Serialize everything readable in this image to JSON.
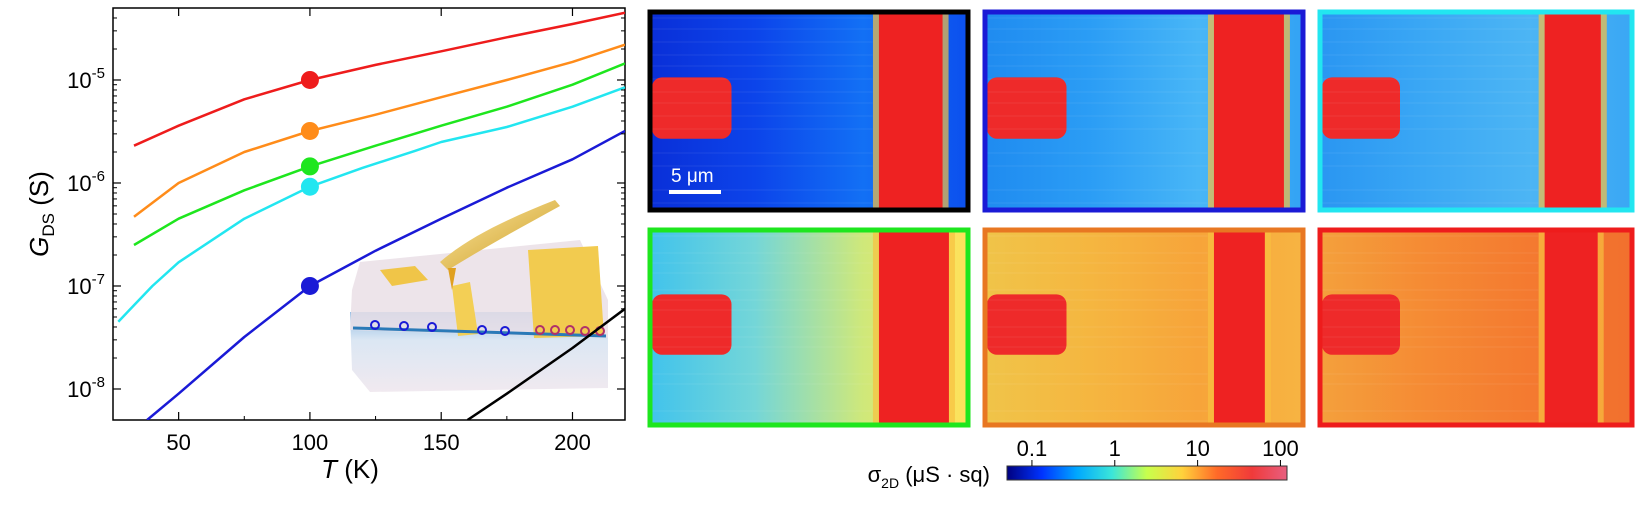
{
  "chart_data": {
    "type": "line",
    "xlabel": "T",
    "xunit": "(K)",
    "ylabel": "G",
    "ylabel_sub": "DS",
    "yunit": "(S)",
    "xlim": [
      25,
      220
    ],
    "ylim": [
      5e-09,
      5e-05
    ],
    "yscale": "log",
    "xticks": [
      "50",
      "100",
      "150",
      "200"
    ],
    "xtick_values": [
      50,
      100,
      150,
      200
    ],
    "yticks": [
      {
        "value": 1e-05,
        "base": "10",
        "exp": "-5"
      },
      {
        "value": 1e-06,
        "base": "10",
        "exp": "-6"
      },
      {
        "value": 1e-07,
        "base": "10",
        "exp": "-7"
      },
      {
        "value": 1e-08,
        "base": "10",
        "exp": "-8"
      }
    ],
    "series": [
      {
        "color": "#ee1c1c",
        "x": [
          33,
          50,
          75,
          100,
          125,
          150,
          175,
          200,
          220
        ],
        "y": [
          2.3e-06,
          3.6e-06,
          6.5e-06,
          1e-05,
          1.4e-05,
          1.9e-05,
          2.6e-05,
          3.5e-05,
          4.5e-05
        ]
      },
      {
        "color": "#ff8c1a",
        "x": [
          33,
          50,
          75,
          100,
          125,
          150,
          175,
          200,
          220
        ],
        "y": [
          4.7e-07,
          1e-06,
          2e-06,
          3.2e-06,
          4.6e-06,
          6.8e-06,
          1e-05,
          1.5e-05,
          2.2e-05
        ]
      },
      {
        "color": "#1ee61e",
        "x": [
          33,
          50,
          75,
          100,
          125,
          150,
          175,
          200,
          220
        ],
        "y": [
          2.5e-07,
          4.5e-07,
          8.5e-07,
          1.45e-06,
          2.3e-06,
          3.6e-06,
          5.5e-06,
          9e-06,
          1.45e-05
        ]
      },
      {
        "color": "#22e6f0",
        "x": [
          27,
          40,
          50,
          75,
          100,
          120,
          140,
          150,
          175,
          200,
          220
        ],
        "y": [
          4.5e-08,
          1e-07,
          1.7e-07,
          4.5e-07,
          9.2e-07,
          1.4e-06,
          2.05e-06,
          2.5e-06,
          3.5e-06,
          5.5e-06,
          8.5e-06
        ]
      },
      {
        "color": "#1a1ad6",
        "x": [
          38,
          50,
          75,
          100,
          125,
          150,
          175,
          200,
          220
        ],
        "y": [
          5e-09,
          9e-09,
          3.2e-08,
          1e-07,
          2.2e-07,
          4.5e-07,
          9e-07,
          1.7e-06,
          3.2e-06
        ]
      },
      {
        "color": "#000000",
        "x": [
          160,
          175,
          200,
          220
        ],
        "y": [
          5e-09,
          9e-09,
          2.5e-08,
          6e-08
        ]
      }
    ],
    "markers": [
      {
        "color": "#ee1c1c",
        "x": 100,
        "y": 1e-05
      },
      {
        "color": "#ff8c1a",
        "x": 100,
        "y": 3.2e-06
      },
      {
        "color": "#1ee61e",
        "x": 100,
        "y": 1.45e-06
      },
      {
        "color": "#22e6f0",
        "x": 100,
        "y": 9.2e-07
      },
      {
        "color": "#1a1ad6",
        "x": 100,
        "y": 1e-07
      }
    ]
  },
  "maps": [
    {
      "border": "#000000",
      "stripe_width": 0.2
    },
    {
      "border": "#1a1ad6",
      "stripe_width": 0.22
    },
    {
      "border": "#22e6f0",
      "stripe_width": 0.18
    },
    {
      "border": "#1ee61e",
      "stripe_width": 0.22
    },
    {
      "border": "#e87722",
      "stripe_width": 0.16
    },
    {
      "border": "#ee1c1c",
      "stripe_width": 0.17
    }
  ],
  "scalebar_label": "5 μm",
  "colorbar": {
    "label": "σ",
    "label_sub": "2D",
    "unit": "(μS · sq)",
    "ticks": [
      "0.1",
      "1",
      "10",
      "100"
    ],
    "tick_values": [
      0.1,
      1,
      10,
      100
    ],
    "range": [
      0.05,
      120
    ],
    "colors": [
      "#00007f",
      "#0033ff",
      "#00a8ff",
      "#3be6d9",
      "#c8ff4c",
      "#ffd23c",
      "#ff6a28",
      "#f03a3a",
      "#e85f80"
    ]
  }
}
